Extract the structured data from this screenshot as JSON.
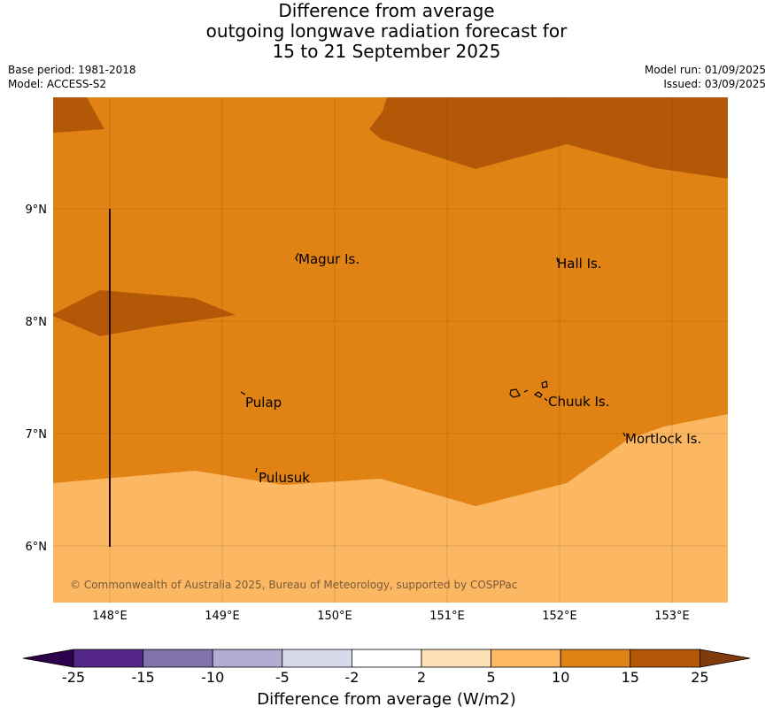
{
  "title": {
    "line1": "Difference from average",
    "line2": "outgoing longwave radiation forecast for",
    "line3": "15 to 21 September 2025"
  },
  "meta_left": {
    "base_period": "Base period: 1981-2018",
    "model": "Model: ACCESS-S2"
  },
  "meta_right": {
    "model_run": "Model run: 01/09/2025",
    "issued": "Issued: 03/09/2025"
  },
  "map": {
    "lat_labels": [
      "9°N",
      "8°N",
      "7°N",
      "6°N"
    ],
    "lon_labels": [
      "148°E",
      "149°E",
      "150°E",
      "151°E",
      "152°E",
      "153°E"
    ],
    "places": [
      "Magur Is.",
      "Hall Is.",
      "Pulap",
      "Chuuk Is.",
      "Mortlock Is.",
      "Pulusuk"
    ],
    "copyright": "© Commonwealth of Australia 2025, Bureau of Meteorology, supported by COSPPac",
    "colors": {
      "band_5_10": "#fbb762",
      "band_10_15": "#e08214",
      "band_15_25": "#b35806"
    }
  },
  "colorbar": {
    "ticks": [
      "-25",
      "-15",
      "-10",
      "-5",
      "-2",
      "2",
      "5",
      "10",
      "15",
      "25"
    ],
    "colors": [
      "#2d004b",
      "#542788",
      "#8073ac",
      "#b2abd2",
      "#d8daeb",
      "#ffffff",
      "#fee0b6",
      "#fdb863",
      "#e08214",
      "#b35806",
      "#7f3b08"
    ],
    "label": "Difference from average (W/m2)"
  }
}
